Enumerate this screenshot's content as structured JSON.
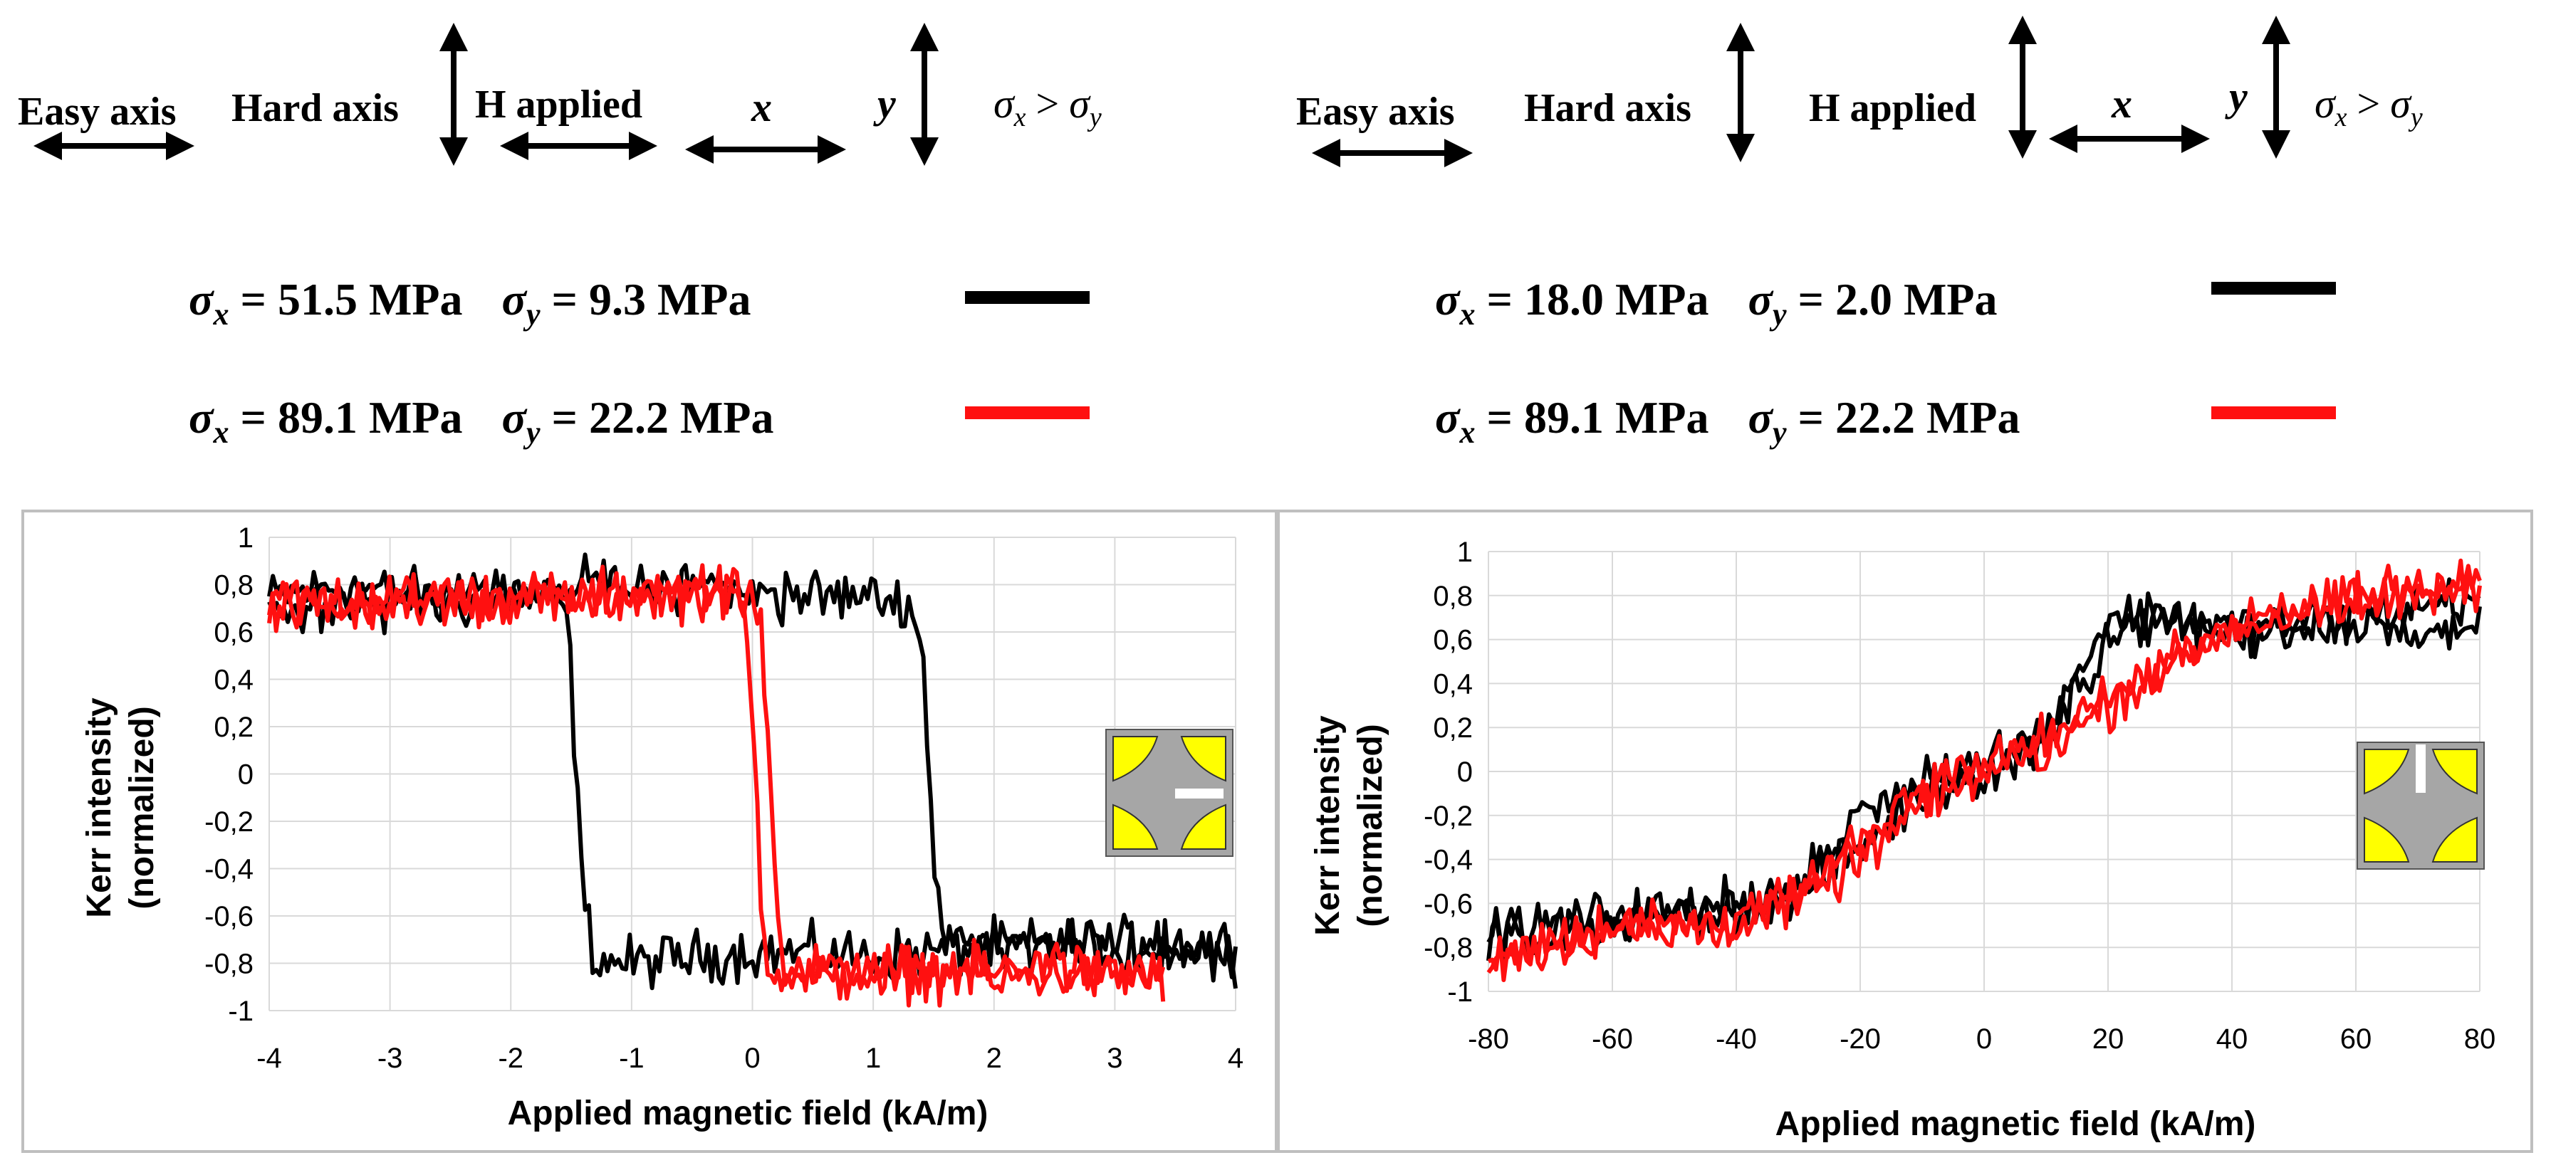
{
  "colors": {
    "black_series": "#000000",
    "red_series": "#ff1010",
    "grid": "#d9d9d9",
    "inset_bg": "#a6a6a6",
    "inset_petal": "#ffff00"
  },
  "left_header": {
    "legend_labels": {
      "easy": "Easy axis",
      "hard": "Hard axis",
      "h": "H applied",
      "x": "x",
      "y": "y",
      "sx": "σ",
      "sy": "σ",
      "sub_x": "x",
      "sub_y": "y",
      "gt": ">"
    },
    "lines": [
      {
        "sx": "σ",
        "sub_x": "x",
        "sx_val": " = 51.5 MPa",
        "sy": "σ",
        "sub_y": "y",
        "sy_val": " = 9.3 MPa",
        "color_key": "black_series"
      },
      {
        "sx": "σ",
        "sub_x": "x",
        "sx_val": " = 89.1 MPa",
        "sy": "σ",
        "sub_y": "y",
        "sy_val": " = 22.2 MPa",
        "color_key": "red_series"
      }
    ]
  },
  "right_header": {
    "legend_labels": {
      "easy": "Easy axis",
      "hard": "Hard axis",
      "h": "H applied",
      "x": "x",
      "y": "y",
      "sx": "σ",
      "sy": "σ",
      "sub_x": "x",
      "sub_y": "y",
      "gt": ">"
    },
    "lines": [
      {
        "sx": "σ",
        "sub_x": "x",
        "sx_val": " = 18.0 MPa",
        "sy": "σ",
        "sub_y": "y",
        "sy_val": " = 2.0 MPa",
        "color_key": "black_series"
      },
      {
        "sx": "σ",
        "sub_x": "x",
        "sx_val": " = 89.1 MPa",
        "sy": "σ",
        "sub_y": "y",
        "sy_val": " = 22.2 MPa",
        "color_key": "red_series"
      }
    ]
  },
  "chart_data": [
    {
      "type": "line",
      "xlabel": "Applied magnetic field (kA/m)",
      "ylabel": [
        "Kerr intensity",
        "(normalized)"
      ],
      "xlim": [
        -4,
        4
      ],
      "ylim": [
        -1,
        1
      ],
      "xticks": [
        -4,
        -3,
        -2,
        -1,
        0,
        1,
        2,
        3,
        4
      ],
      "xtick_labels": [
        "-4",
        "-3",
        "-2",
        "-1",
        "0",
        "1",
        "2",
        "3",
        "4"
      ],
      "yticks": [
        1,
        0.8,
        0.6,
        0.4,
        0.2,
        0,
        -0.2,
        -0.4,
        -0.6,
        -0.8,
        -1
      ],
      "ytick_labels": [
        "1",
        "0,8",
        "0,6",
        "0,4",
        "0,2",
        "0",
        "-0,2",
        "-0,4",
        "-0,6",
        "-0,8",
        "-1"
      ],
      "grid": true,
      "inset": "slit-horizontal",
      "series": [
        {
          "name": "σx = 51.5 MPa, σy = 9.3 MPa",
          "color_key": "black_series",
          "branch_down": {
            "x": [
              -4,
              -3.4,
              -2.5,
              -1.7,
              -1.55,
              -1.5,
              -1.4,
              -1.3,
              -1.0,
              0,
              1,
              2,
              3,
              4
            ],
            "y": [
              0.74,
              0.8,
              0.72,
              0.74,
              0.72,
              0.4,
              -0.55,
              -0.78,
              -0.8,
              -0.75,
              -0.77,
              -0.73,
              -0.72,
              -0.72
            ]
          },
          "branch_up": {
            "x": [
              4,
              3,
              2,
              1.7,
              1.55,
              1.5,
              1.4,
              1.3,
              1.0,
              0,
              -1,
              -2,
              -3,
              -4
            ],
            "y": [
              -0.75,
              -0.74,
              -0.72,
              -0.7,
              -0.62,
              -0.4,
              0.6,
              0.72,
              0.74,
              0.78,
              0.82,
              0.76,
              0.74,
              0.7
            ]
          }
        },
        {
          "name": "σx = 89.1 MPa, σy = 22.2 MPa",
          "color_key": "red_series",
          "branch_down": {
            "x": [
              -4,
              -2,
              -0.8,
              -0.2,
              -0.08,
              0.0,
              0.08,
              0.15,
              0.5,
              1.5,
              2.5,
              3.4
            ],
            "y": [
              0.72,
              0.74,
              0.76,
              0.76,
              0.72,
              0.3,
              -0.6,
              -0.82,
              -0.86,
              -0.84,
              -0.85,
              -0.86
            ]
          },
          "branch_up": {
            "x": [
              3.4,
              2.5,
              1.5,
              0.5,
              0.25,
              0.2,
              0.12,
              0.05,
              -0.2,
              -0.8,
              -2,
              -4
            ],
            "y": [
              -0.86,
              -0.83,
              -0.85,
              -0.84,
              -0.82,
              -0.5,
              0.2,
              0.7,
              0.76,
              0.76,
              0.74,
              0.72
            ]
          }
        }
      ]
    },
    {
      "type": "line",
      "xlabel": "Applied magnetic field (kA/m)",
      "ylabel": [
        "Kerr intensity",
        "(normalized)"
      ],
      "xlim": [
        -80,
        80
      ],
      "ylim": [
        -1,
        1
      ],
      "xticks": [
        -80,
        -60,
        -40,
        -20,
        0,
        20,
        40,
        60,
        80
      ],
      "xtick_labels": [
        "-80",
        "-60",
        "-40",
        "-20",
        "0",
        "20",
        "40",
        "60",
        "80"
      ],
      "yticks": [
        1,
        0.8,
        0.6,
        0.4,
        0.2,
        0,
        -0.2,
        -0.4,
        -0.6,
        -0.8,
        -1
      ],
      "ytick_labels": [
        "1",
        "0,8",
        "0,6",
        "0,4",
        "0,2",
        "0",
        "-0,2",
        "-0,4",
        "-0,6",
        "-0,8",
        "-1"
      ],
      "grid": true,
      "inset": "slit-vertical",
      "series": [
        {
          "name": "σx = 18.0 MPa, σy = 2.0 MPa",
          "color_key": "black_series",
          "branch_down": {
            "x": [
              80,
              60,
              40,
              30,
              20,
              15,
              10,
              0,
              -10,
              -20,
              -30,
              -40,
              -60,
              -80
            ],
            "y": [
              0.65,
              0.65,
              0.62,
              0.7,
              0.6,
              0.35,
              0.15,
              0.05,
              -0.05,
              -0.2,
              -0.55,
              -0.6,
              -0.68,
              -0.75
            ]
          },
          "branch_up": {
            "x": [
              -80,
              -60,
              -40,
              -30,
              -20,
              -10,
              0,
              10,
              15,
              20,
              30,
              40,
              60,
              80
            ],
            "y": [
              -0.75,
              -0.65,
              -0.62,
              -0.55,
              -0.35,
              -0.1,
              0.0,
              0.15,
              0.45,
              0.7,
              0.72,
              0.65,
              0.7,
              0.8
            ]
          }
        },
        {
          "name": "σx = 89.1 MPa, σy = 22.2 MPa",
          "color_key": "red_series",
          "branch_down": {
            "x": [
              80,
              60,
              40,
              30,
              20,
              10,
              0,
              -10,
              -20,
              -30,
              -40,
              -60,
              -80
            ],
            "y": [
              0.85,
              0.78,
              0.65,
              0.5,
              0.35,
              0.15,
              0.05,
              -0.1,
              -0.3,
              -0.55,
              -0.68,
              -0.72,
              -0.85
            ]
          },
          "branch_up": {
            "x": [
              -80,
              -60,
              -40,
              -30,
              -20,
              -10,
              0,
              10,
              20,
              30,
              40,
              60,
              80
            ],
            "y": [
              -0.85,
              -0.72,
              -0.68,
              -0.6,
              -0.4,
              -0.15,
              0.0,
              0.1,
              0.3,
              0.5,
              0.65,
              0.78,
              0.85
            ]
          }
        }
      ]
    }
  ]
}
